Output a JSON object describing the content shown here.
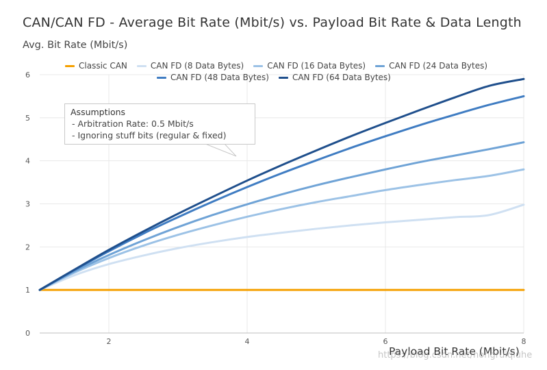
{
  "chart_data": {
    "type": "line",
    "title": "CAN/CAN FD - Average Bit Rate (Mbit/s) vs. Payload Bit Rate & Data Length",
    "ylabel": "Avg. Bit Rate (Mbit/s)",
    "xlabel": "Payload Bit Rate (Mbit/s)",
    "xlim": [
      1,
      8
    ],
    "ylim": [
      0,
      6
    ],
    "xticks": [
      "2",
      "4",
      "6",
      "8"
    ],
    "yticks": [
      "0",
      "1",
      "2",
      "3",
      "4",
      "5",
      "6"
    ],
    "x": [
      1,
      1.5,
      2,
      2.5,
      3,
      3.5,
      4,
      4.5,
      5,
      5.5,
      6,
      6.5,
      7,
      7.5,
      8
    ],
    "series": [
      {
        "name": "Classic CAN",
        "color": "#f5a000",
        "values": [
          1,
          1,
          1,
          1,
          1,
          1,
          1,
          1,
          1,
          1,
          1,
          1,
          1,
          1,
          1
        ]
      },
      {
        "name": "CAN FD (8 Data Bytes)",
        "color": "#cfe0f2",
        "values": [
          1,
          1.34,
          1.6,
          1.8,
          1.97,
          2.11,
          2.23,
          2.33,
          2.42,
          2.5,
          2.57,
          2.63,
          2.69,
          2.74,
          2.98
        ]
      },
      {
        "name": "CAN FD (16 Data Bytes)",
        "color": "#9cc2e6",
        "values": [
          1,
          1.4,
          1.74,
          2.03,
          2.28,
          2.5,
          2.7,
          2.88,
          3.04,
          3.18,
          3.32,
          3.44,
          3.55,
          3.65,
          3.8
        ]
      },
      {
        "name": "CAN FD (24 Data Bytes)",
        "color": "#6fa3d6",
        "values": [
          1,
          1.43,
          1.81,
          2.15,
          2.46,
          2.74,
          2.99,
          3.22,
          3.43,
          3.62,
          3.8,
          3.97,
          4.12,
          4.27,
          4.43
        ]
      },
      {
        "name": "CAN FD (48 Data Bytes)",
        "color": "#3f7cc2",
        "values": [
          1,
          1.46,
          1.9,
          2.31,
          2.69,
          3.05,
          3.39,
          3.71,
          4.01,
          4.3,
          4.57,
          4.83,
          5.07,
          5.3,
          5.5
        ]
      },
      {
        "name": "CAN FD (64 Data Bytes)",
        "color": "#1f4f8c",
        "values": [
          1,
          1.47,
          1.93,
          2.36,
          2.77,
          3.16,
          3.54,
          3.9,
          4.24,
          4.57,
          4.88,
          5.18,
          5.47,
          5.74,
          5.9
        ]
      }
    ],
    "legend_position": "top",
    "annotation": {
      "title": "Assumptions",
      "lines": [
        "- Arbitration Rate: 0.5 Mbit/s",
        "- Ignoring stuff bits (regular & fixed)"
      ]
    }
  },
  "watermark": "https://blog.csdn.net/hongruiqiuhe"
}
